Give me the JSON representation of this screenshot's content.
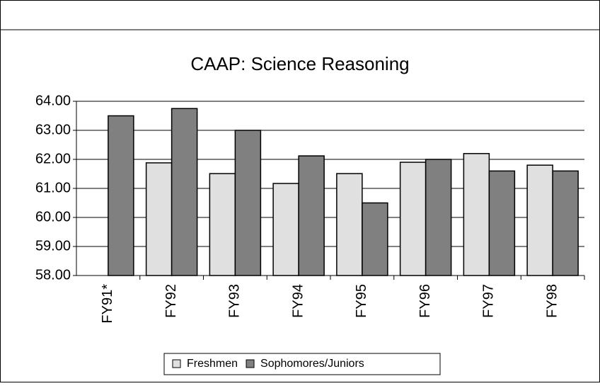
{
  "chart_data": {
    "type": "bar",
    "title": "CAAP: Science Reasoning",
    "categories": [
      "FY91*",
      "FY92",
      "FY93",
      "FY94",
      "FY95",
      "FY96",
      "FY97",
      "FY98"
    ],
    "series": [
      {
        "name": "Freshmen",
        "color": "#e0e0e0",
        "values": [
          null,
          61.88,
          61.51,
          61.17,
          61.51,
          61.9,
          62.2,
          61.8
        ]
      },
      {
        "name": "Sophomores/Juniors",
        "color": "#808080",
        "values": [
          63.5,
          63.75,
          63.0,
          62.12,
          60.5,
          62.0,
          61.6,
          61.6
        ]
      }
    ],
    "ylim": [
      58,
      64
    ],
    "yticks": [
      {
        "value": 58,
        "label": "58.00"
      },
      {
        "value": 59,
        "label": "59.00"
      },
      {
        "value": 60,
        "label": "60.00"
      },
      {
        "value": 61,
        "label": "61.00"
      },
      {
        "value": 62,
        "label": "62.00"
      },
      {
        "value": 63,
        "label": "63.00"
      },
      {
        "value": 64,
        "label": "64.00"
      }
    ],
    "grid": true,
    "legend": "bottom"
  }
}
